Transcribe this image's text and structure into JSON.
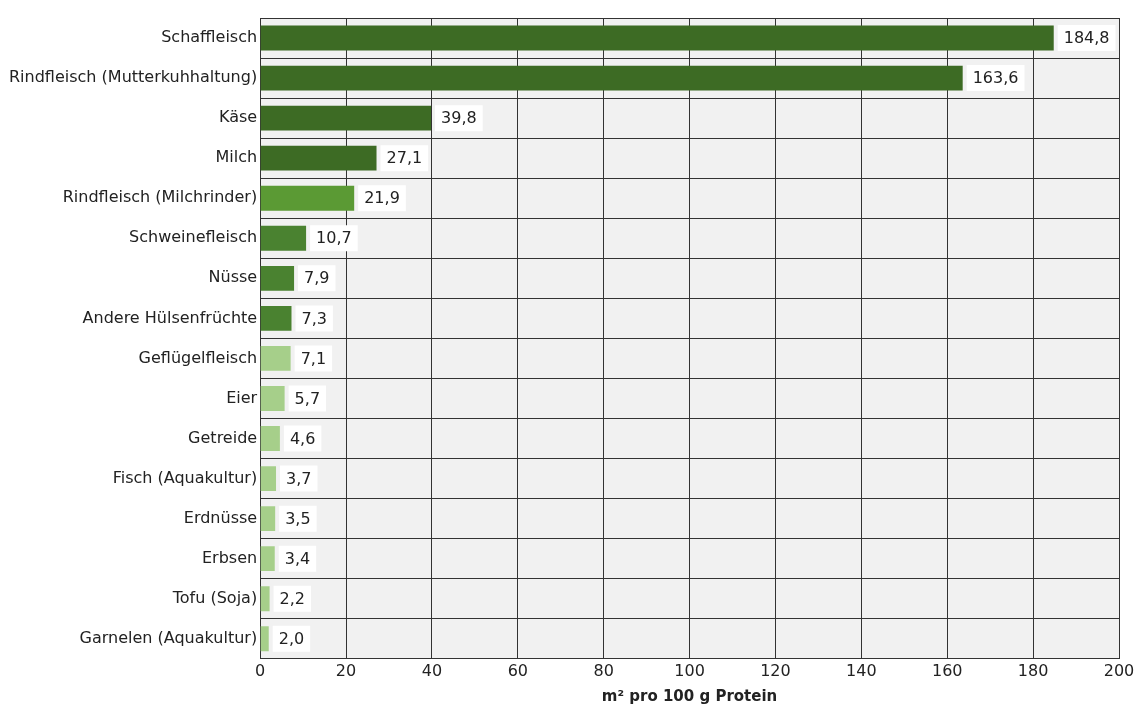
{
  "chart_data": {
    "type": "bar",
    "orientation": "horizontal",
    "xlabel": "m² pro 100 g Protein",
    "categories": [
      "Schaffleisch",
      "Rindfleisch (Mutterkuhhaltung)",
      "Käse",
      "Milch",
      "Rindfleisch (Milchrinder)",
      "Schweinefleisch",
      "Nüsse",
      "Andere Hülsenfrüchte",
      "Geflügelfleisch",
      "Eier",
      "Getreide",
      "Fisch (Aquakultur)",
      "Erdnüsse",
      "Erbsen",
      "Tofu (Soja)",
      "Garnelen (Aquakultur)"
    ],
    "values": [
      184.8,
      163.6,
      39.8,
      27.1,
      21.9,
      10.7,
      7.9,
      7.3,
      7.1,
      5.7,
      4.6,
      3.7,
      3.5,
      3.4,
      2.2,
      2.0
    ],
    "value_labels": [
      "184,8",
      "163,6",
      "39,8",
      "27,1",
      "21,9",
      "10,7",
      "7,9",
      "7,3",
      "7,1",
      "5,7",
      "4,6",
      "3,7",
      "3,5",
      "3,4",
      "2,2",
      "2,0"
    ],
    "colors": [
      "#3d6b24",
      "#3d6b24",
      "#3d6b24",
      "#3d6b24",
      "#5b9a34",
      "#4a8230",
      "#4a8230",
      "#4a8230",
      "#a6cf8a",
      "#a6cf8a",
      "#a6cf8a",
      "#a6cf8a",
      "#a6cf8a",
      "#a6cf8a",
      "#a6cf8a",
      "#a6cf8a"
    ],
    "xlim": [
      0,
      200
    ],
    "xticks": [
      0,
      20,
      40,
      60,
      80,
      100,
      120,
      140,
      160,
      180,
      200
    ],
    "grid": true
  }
}
